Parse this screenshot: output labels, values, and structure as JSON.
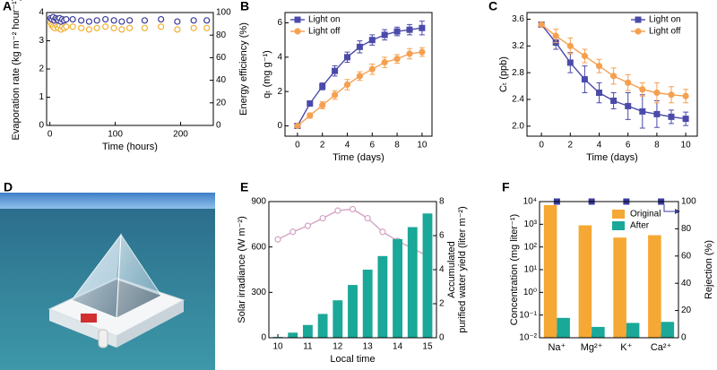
{
  "chart_data": [
    {
      "type": "scatter",
      "label": "A",
      "xlabel": "Time (hours)",
      "ylabel": "Evaporation rate (kg m⁻² hour⁻¹)",
      "y2label": "Energy efficiency (%)",
      "color_axes": true,
      "x": [
        1,
        3,
        5,
        7,
        9,
        11,
        13,
        15,
        17,
        19,
        22,
        25,
        35,
        48,
        60,
        72,
        85,
        98,
        110,
        122,
        145,
        170,
        195,
        220,
        240
      ],
      "xlim": [
        -5,
        250
      ],
      "xticks": [
        0,
        100,
        200
      ],
      "ylim": [
        0,
        4
      ],
      "yticks": [
        0,
        1,
        2,
        3,
        4
      ],
      "y2lim": [
        0,
        100
      ],
      "y2ticks": [
        0,
        20,
        40,
        60,
        80,
        100
      ],
      "series": [
        {
          "name": "Evaporation rate",
          "color": "#f0b030",
          "marker": "circle",
          "values": [
            3.65,
            3.55,
            3.5,
            3.45,
            3.6,
            3.5,
            3.45,
            3.55,
            3.4,
            3.5,
            3.45,
            3.5,
            3.5,
            3.45,
            3.4,
            3.45,
            3.5,
            3.45,
            3.4,
            3.45,
            3.45,
            3.5,
            3.4,
            3.45,
            3.45
          ]
        },
        {
          "name": "Energy efficiency",
          "color": "#3a3a9a",
          "marker": "circle",
          "axis": "y2",
          "values": [
            95,
            94,
            96,
            93,
            95,
            94,
            93,
            95,
            92,
            94,
            93,
            94,
            94,
            93,
            92,
            93,
            94,
            93,
            92,
            93,
            93,
            94,
            92,
            93,
            93
          ]
        }
      ]
    },
    {
      "type": "line",
      "label": "B",
      "xlabel": "Time (days)",
      "ylabel": "qₜ (mg g⁻¹)",
      "legend": "upper left",
      "x": [
        0,
        1,
        2,
        3,
        4,
        5,
        6,
        7,
        8,
        9,
        10
      ],
      "xlim": [
        -1,
        10.8
      ],
      "xticks": [
        0,
        2,
        4,
        6,
        8,
        10
      ],
      "ylim": [
        -0.6,
        6.6
      ],
      "yticks": [
        0,
        2,
        4,
        6
      ],
      "series": [
        {
          "name": "Light on",
          "color": "#4a4aaa",
          "marker": "square",
          "values": [
            0,
            1.3,
            2.3,
            3.2,
            4.0,
            4.6,
            5.0,
            5.3,
            5.5,
            5.6,
            5.7
          ],
          "errors": [
            0.05,
            0.15,
            0.2,
            0.3,
            0.3,
            0.35,
            0.3,
            0.3,
            0.25,
            0.3,
            0.4
          ]
        },
        {
          "name": "Light off",
          "color": "#f5a050",
          "marker": "circle",
          "values": [
            0,
            0.6,
            1.2,
            1.8,
            2.4,
            2.9,
            3.3,
            3.7,
            3.9,
            4.2,
            4.3
          ],
          "errors": [
            0.05,
            0.15,
            0.2,
            0.25,
            0.3,
            0.25,
            0.3,
            0.3,
            0.25,
            0.3,
            0.25
          ]
        }
      ]
    },
    {
      "type": "line",
      "label": "C",
      "xlabel": "Time (days)",
      "ylabel": "Cₜ (ppb)",
      "legend": "upper right",
      "x": [
        0,
        1,
        2,
        3,
        4,
        5,
        6,
        7,
        8,
        9,
        10
      ],
      "xlim": [
        -1,
        10.8
      ],
      "xticks": [
        0,
        2,
        4,
        6,
        8,
        10
      ],
      "ylim": [
        1.85,
        3.7
      ],
      "yticks": [
        {
          "value": 2,
          "label": "2.0"
        },
        2.4,
        2.8,
        3.2,
        3.6
      ],
      "series": [
        {
          "name": "Light on",
          "color": "#4a4aaa",
          "marker": "square",
          "values": [
            3.52,
            3.25,
            2.95,
            2.7,
            2.5,
            2.38,
            2.3,
            2.22,
            2.18,
            2.14,
            2.11
          ],
          "errors": [
            0.02,
            0.1,
            0.15,
            0.2,
            0.15,
            0.12,
            0.2,
            0.25,
            0.2,
            0.1,
            0.1
          ]
        },
        {
          "name": "Light off",
          "color": "#f5a050",
          "marker": "circle",
          "values": [
            3.52,
            3.35,
            3.2,
            3.05,
            2.9,
            2.75,
            2.65,
            2.55,
            2.5,
            2.47,
            2.45
          ],
          "errors": [
            0.02,
            0.1,
            0.12,
            0.1,
            0.1,
            0.12,
            0.12,
            0.1,
            0.15,
            0.12,
            0.1
          ]
        }
      ]
    },
    {
      "type": "bar",
      "label": "E",
      "xlabel": "Local time",
      "ylabel": "Solar irradiance (W m⁻²)",
      "y2label": [
        "Accumulated",
        "purified water yield (liter m⁻²)"
      ],
      "color_axes": true,
      "x": [
        10,
        10.5,
        11,
        11.5,
        12,
        12.5,
        13,
        13.5,
        14,
        14.5,
        15
      ],
      "xlim": [
        9.7,
        15.3
      ],
      "xticks": [
        10,
        11,
        12,
        13,
        14,
        15
      ],
      "ylim": [
        0,
        900
      ],
      "yticks": [
        0,
        300,
        600,
        900
      ],
      "y2lim": [
        0,
        8
      ],
      "y2ticks": [
        0,
        2,
        4,
        6,
        8
      ],
      "series": [
        {
          "name": "Solar irradiance",
          "type": "line",
          "color": "#d4a4c4",
          "marker": "circle",
          "open": true,
          "values": [
            650,
            700,
            740,
            790,
            840,
            850,
            790,
            700,
            640,
            590,
            540
          ]
        },
        {
          "name": "Accumulated purified water yield",
          "type": "bar",
          "axis": "y2",
          "color": "#1aa898",
          "values": [
            0.05,
            0.3,
            0.75,
            1.4,
            2.2,
            3.1,
            4.0,
            4.8,
            5.8,
            6.5,
            7.3
          ]
        }
      ]
    },
    {
      "type": "bar",
      "label": "F",
      "ylabel": "Concentration (mg liter⁻¹)",
      "y2label": "Rejection (%)",
      "legend": "upper right",
      "ylog": true,
      "categories": [
        "Na⁺",
        "Mg²⁺",
        "K⁺",
        "Ca²⁺"
      ],
      "ylim": [
        0.01,
        10000
      ],
      "yticks": [
        {
          "value": 0.01,
          "label": "10⁻²"
        },
        {
          "value": 0.1,
          "label": "10⁻¹"
        },
        {
          "value": 1,
          "label": "10⁰"
        },
        {
          "value": 10,
          "label": "10¹"
        },
        {
          "value": 100,
          "label": "10²"
        },
        {
          "value": 1000,
          "label": "10³"
        },
        {
          "value": 10000,
          "label": "10⁴"
        }
      ],
      "y2lim": [
        0,
        100
      ],
      "y2ticks": [
        0,
        20,
        40,
        60,
        80,
        100
      ],
      "series": [
        {
          "name": "Original",
          "color": "#f5a833",
          "values": [
            7000,
            900,
            260,
            330
          ]
        },
        {
          "name": "After",
          "color": "#1aa898",
          "values": [
            0.075,
            0.03,
            0.045,
            0.05
          ]
        },
        {
          "type": "scatter",
          "axis": "y2",
          "marker": "square",
          "color": "#3a3aa0",
          "values": [
            99.99,
            99.99,
            99.99,
            99.99
          ]
        }
      ]
    }
  ],
  "photo": {
    "label": "D"
  }
}
